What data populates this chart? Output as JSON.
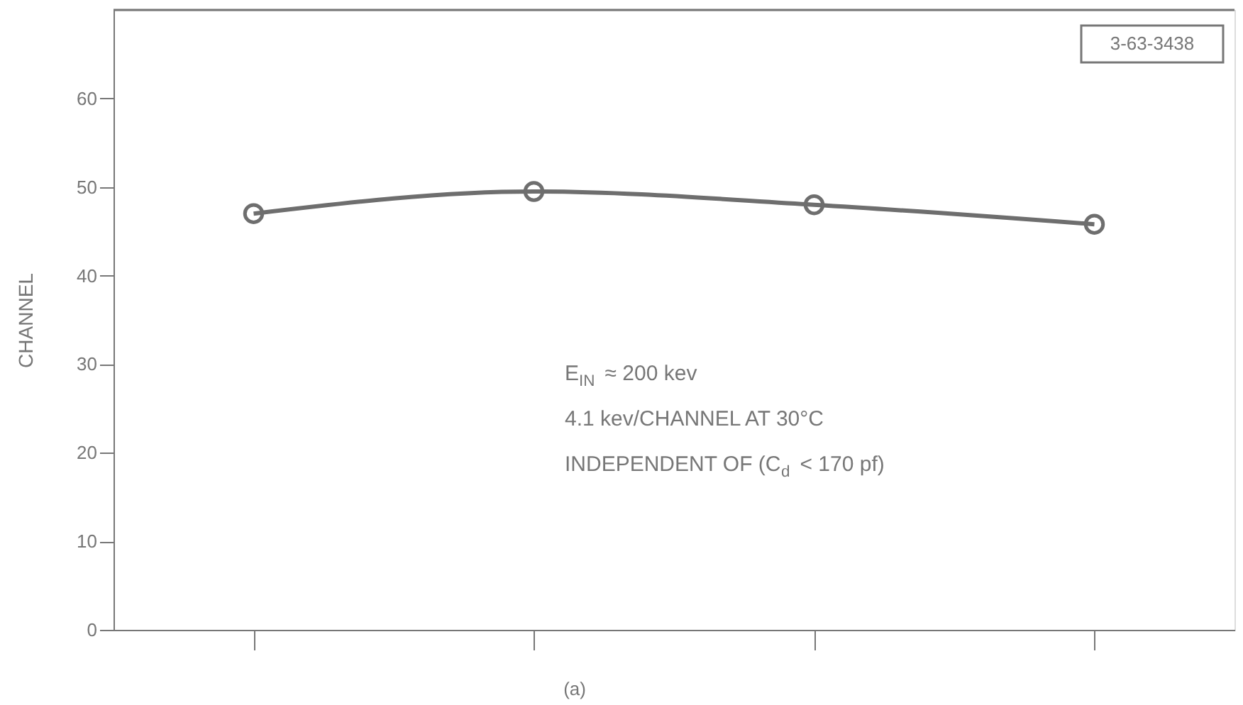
{
  "chart_data": {
    "type": "line",
    "ylabel": "CHANNEL",
    "categories": [
      null,
      null,
      null,
      null
    ],
    "series": [
      {
        "color": "#6e6e6e",
        "values": [
          47,
          49.5,
          48,
          45.8
        ]
      }
    ],
    "ylim": [
      0,
      70
    ],
    "yticks": [
      0,
      10,
      20,
      30,
      40,
      50,
      60
    ],
    "grid": false,
    "marker": "circle",
    "line_style": "solid",
    "annotations": [
      "3-63-3438",
      "E$_{IN}$ ≈ 200 kev",
      "4.1 kev/CHANNEL AT 30°C",
      "INDEPENDENT OF (C$_{d}$ < 170 pf)",
      "(a)"
    ]
  }
}
